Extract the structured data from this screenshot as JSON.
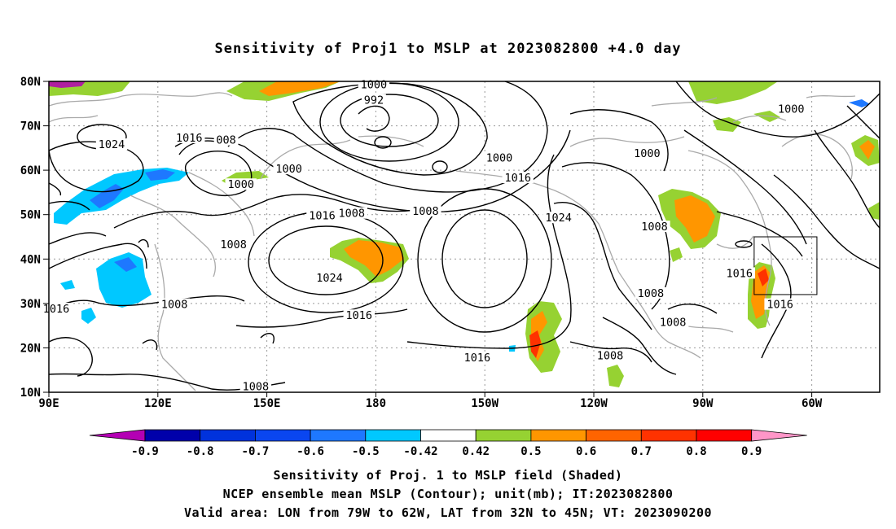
{
  "title": "Sensitivity of Proj1 to MSLP at 2023082800 +4.0 day",
  "lat_labels": [
    "80N",
    "70N",
    "60N",
    "50N",
    "40N",
    "30N",
    "20N",
    "10N"
  ],
  "lon_labels": [
    "90E",
    "120E",
    "150E",
    "180",
    "150W",
    "120W",
    "90W",
    "60W"
  ],
  "contour_labels": [
    {
      "text": "1000",
      "lon": 178,
      "lat": 79
    },
    {
      "text": "992",
      "lon": 178,
      "lat": 75.5
    },
    {
      "text": "1024",
      "lon": 107,
      "lat": 65.5
    },
    {
      "text": "1016",
      "lon": 128,
      "lat": 67
    },
    {
      "text": "008",
      "lon": 138,
      "lat": 66.5
    },
    {
      "text": "1000",
      "lon": 155,
      "lat": 60
    },
    {
      "text": "1000",
      "lon": 142,
      "lat": 56.5
    },
    {
      "text": "1016",
      "lon": 164,
      "lat": 49.5
    },
    {
      "text": "1008",
      "lon": 172,
      "lat": 50
    },
    {
      "text": "1008",
      "lon": 192,
      "lat": 50.5
    },
    {
      "text": "1000",
      "lon": 212,
      "lat": 62.5
    },
    {
      "text": "1016",
      "lon": 217,
      "lat": 58
    },
    {
      "text": "1024",
      "lon": 228,
      "lat": 49
    },
    {
      "text": "1008",
      "lon": 140,
      "lat": 43
    },
    {
      "text": "1024",
      "lon": 166,
      "lat": 35.5
    },
    {
      "text": "1016",
      "lon": 92,
      "lat": 28.5
    },
    {
      "text": "1008",
      "lon": 124,
      "lat": 29.5
    },
    {
      "text": "1016",
      "lon": 174,
      "lat": 27
    },
    {
      "text": "1016",
      "lon": 206,
      "lat": 17.5
    },
    {
      "text": "1008",
      "lon": 242,
      "lat": 18
    },
    {
      "text": "1008",
      "lon": 253,
      "lat": 32
    },
    {
      "text": "1008",
      "lon": 259,
      "lat": 25.5
    },
    {
      "text": "1008",
      "lon": 254,
      "lat": 47
    },
    {
      "text": "1000",
      "lon": 252,
      "lat": 63.5
    },
    {
      "text": "1000",
      "lon": 291,
      "lat": 73.5
    },
    {
      "text": "1016",
      "lon": 277,
      "lat": 36.5
    },
    {
      "text": "1016",
      "lon": 288,
      "lat": 29.5
    },
    {
      "text": "1008",
      "lon": 146,
      "lat": 11
    }
  ],
  "valid_box": {
    "lon_min": 281,
    "lon_max": 298,
    "lat_min": 32,
    "lat_max": 45
  },
  "colorbar": {
    "tick_labels": [
      "-0.9",
      "-0.8",
      "-0.7",
      "-0.6",
      "-0.5",
      "-0.42",
      "0.42",
      "0.5",
      "0.6",
      "0.7",
      "0.8",
      "0.9"
    ],
    "colors": [
      "#b400b4",
      "#0000aa",
      "#0032dc",
      "#0a46f0",
      "#1e78ff",
      "#00c8ff",
      "#ffffff",
      "#96d232",
      "#ff9600",
      "#ff6400",
      "#ff3200",
      "#ff0000",
      "#ff96c8"
    ]
  },
  "footer": {
    "line1": "Sensitivity of Proj. 1 to MSLP field (Shaded)",
    "line2": "NCEP ensemble mean MSLP (Contour); unit(mb); IT:2023082800",
    "line3": "Valid area: LON from 79W to 62W, LAT from 32N to 45N; VT: 2023090200"
  }
}
